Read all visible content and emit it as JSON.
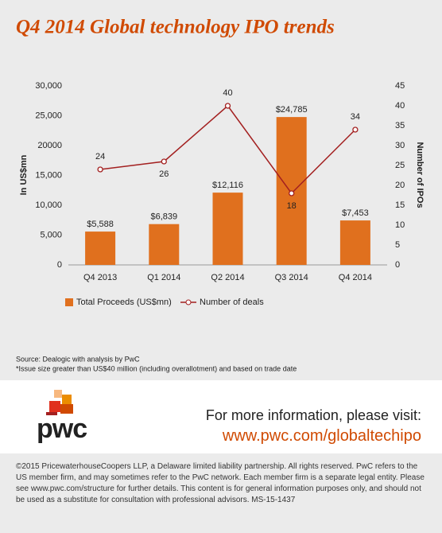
{
  "chart_data": {
    "type": "bar",
    "title": "Q4 2014 Global technology IPO trends",
    "categories": [
      "Q4 2013",
      "Q1 2014",
      "Q2 2014",
      "Q3 2014",
      "Q4 2014"
    ],
    "series": [
      {
        "name": "Total Proceeds (US$mn)",
        "type": "bar",
        "color": "#e0701e",
        "values": [
          5588,
          6839,
          12116,
          24785,
          7453
        ],
        "value_labels": [
          "$5,588",
          "$6,839",
          "$12,116",
          "$24,785",
          "$7,453"
        ]
      },
      {
        "name": "Number of deals",
        "type": "line",
        "axis": "y2",
        "color": "#a32020",
        "values": [
          24,
          26,
          40,
          18,
          34
        ]
      }
    ],
    "ylabel": "In US$mn",
    "y2label": "Number of IPOs",
    "ylim": [
      0,
      30000
    ],
    "yticks": [
      0,
      {
        "value": 5000,
        "label": "5,000"
      },
      {
        "value": 10000,
        "label": "10,000"
      },
      {
        "value": 15000,
        "label": "15,000"
      },
      {
        "value": 20000,
        "label": "20000"
      },
      {
        "value": 25000,
        "label": "25,000"
      },
      {
        "value": 30000,
        "label": "30,000"
      }
    ],
    "y2lim": [
      0,
      45
    ],
    "y2ticks": [
      0,
      5,
      10,
      15,
      20,
      25,
      30,
      35,
      40,
      45
    ],
    "grid": false
  },
  "source": "Source: Dealogic with analysis by PwC",
  "footnote": "*Issue size greater than US$40 million (including overallotment) and based on trade date",
  "logo": "pwc",
  "cta": {
    "text": "For more information, please visit:",
    "url": "www.pwc.com/globaltechipo"
  },
  "copyright": "©2015 PricewaterhouseCoopers LLP, a Delaware limited liability partnership. All rights reserved. PwC refers to the US member firm, and may sometimes refer to the PwC network. Each member firm is a separate legal entity. Please see www.pwc.com/structure for further details. This content is for general information purposes only, and should not be used as a substitute for consultation with professional advisors. MS-15-1437"
}
